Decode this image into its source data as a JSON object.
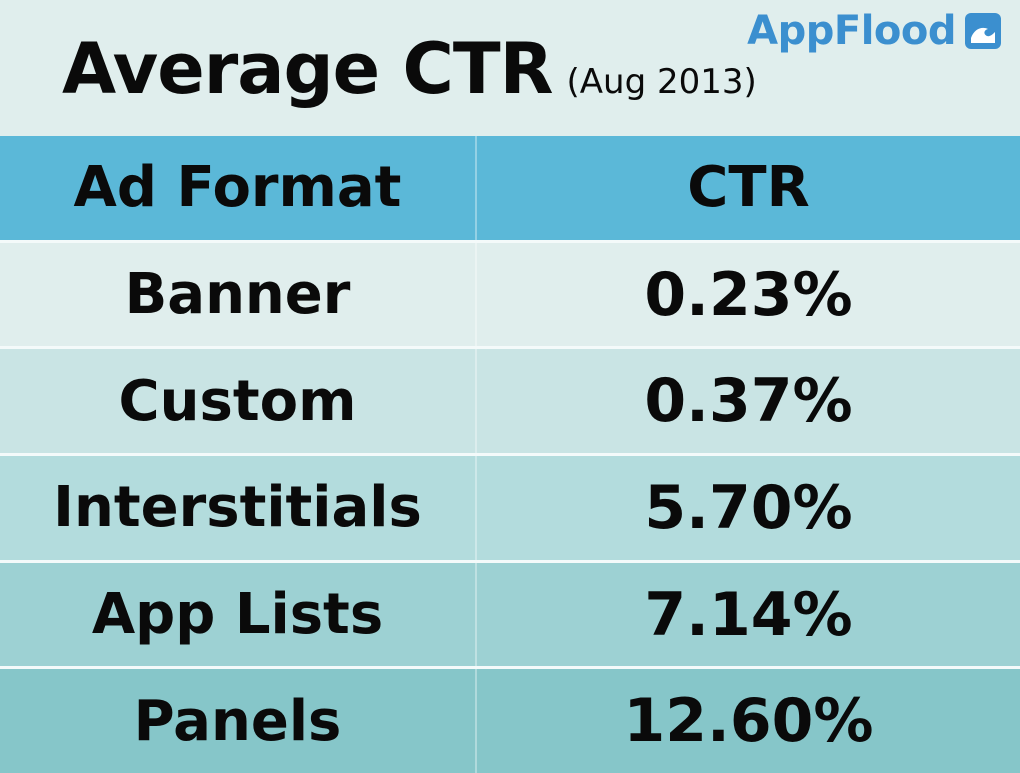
{
  "title": {
    "main": "Average CTR",
    "sub": "(Aug 2013)"
  },
  "brand": {
    "name": "AppFlood",
    "icon": "wave-icon",
    "color": "#3b8fcf"
  },
  "chart_data": {
    "type": "table",
    "columns": [
      "Ad Format",
      "CTR"
    ],
    "rows": [
      {
        "format": "Banner",
        "ctr": "0.23%",
        "value": 0.23
      },
      {
        "format": "Custom",
        "ctr": "0.37%",
        "value": 0.37
      },
      {
        "format": "Interstitials",
        "ctr": "5.70%",
        "value": 5.7
      },
      {
        "format": "App Lists",
        "ctr": "7.14%",
        "value": 7.14
      },
      {
        "format": "Panels",
        "ctr": "12.60%",
        "value": 12.6
      }
    ],
    "header_color": "#5bb8d8",
    "row_colors": [
      "#e0eeed",
      "#c9e4e4",
      "#b3dcdd",
      "#9dd1d3",
      "#86c6c9"
    ]
  }
}
